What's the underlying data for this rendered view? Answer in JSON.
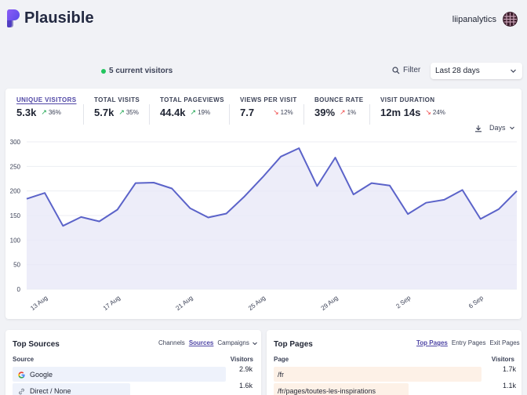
{
  "app": {
    "name": "Plausible",
    "user": "liipanalytics"
  },
  "toolbar": {
    "current_visitors": "5 current visitors",
    "filter_label": "Filter",
    "date_range": "Last 28 days"
  },
  "metrics": [
    {
      "label": "UNIQUE VISITORS",
      "value": "5.3k",
      "change": "36%",
      "direction": "up"
    },
    {
      "label": "TOTAL VISITS",
      "value": "5.7k",
      "change": "35%",
      "direction": "up"
    },
    {
      "label": "TOTAL PAGEVIEWS",
      "value": "44.4k",
      "change": "19%",
      "direction": "up"
    },
    {
      "label": "VIEWS PER VISIT",
      "value": "7.7",
      "change": "12%",
      "direction": "down"
    },
    {
      "label": "BOUNCE RATE",
      "value": "39%",
      "change": "1%",
      "direction": "up"
    },
    {
      "label": "VISIT DURATION",
      "value": "12m 14s",
      "change": "24%",
      "direction": "down"
    }
  ],
  "chart_controls": {
    "interval": "Days"
  },
  "chart_data": {
    "type": "area",
    "x": [
      "12 Aug",
      "13 Aug",
      "14 Aug",
      "15 Aug",
      "16 Aug",
      "17 Aug",
      "18 Aug",
      "19 Aug",
      "20 Aug",
      "21 Aug",
      "22 Aug",
      "23 Aug",
      "24 Aug",
      "25 Aug",
      "26 Aug",
      "27 Aug",
      "28 Aug",
      "29 Aug",
      "30 Aug",
      "31 Aug",
      "1 Sep",
      "2 Sep",
      "3 Sep",
      "4 Sep",
      "5 Sep",
      "6 Sep",
      "7 Sep",
      "8 Sep"
    ],
    "x_tick_labels": [
      "13 Aug",
      "17 Aug",
      "21 Aug",
      "25 Aug",
      "29 Aug",
      "2 Sep",
      "6 Sep"
    ],
    "x_tick_index": [
      1,
      5,
      9,
      13,
      17,
      21,
      25
    ],
    "series": [
      {
        "values": [
          184,
          196,
          129,
          147,
          138,
          162,
          216,
          217,
          205,
          165,
          146,
          154,
          189,
          228,
          270,
          287,
          210,
          268,
          193,
          216,
          211,
          153,
          176,
          182,
          202,
          143,
          163,
          200
        ]
      }
    ],
    "yticks": [
      0,
      50,
      100,
      150,
      200,
      250,
      300
    ],
    "ylim": [
      0,
      300
    ],
    "grid": true,
    "line_color": "#5b63c9",
    "fill_color": "#e8e9f8"
  },
  "sources": {
    "title": "Top Sources",
    "tabs": [
      "Channels",
      "Sources",
      "Campaigns"
    ],
    "active_tab": "Sources",
    "col_source": "Source",
    "col_visitors": "Visitors",
    "rows": [
      {
        "label": "Google",
        "value": "2.9k",
        "share": 1.0,
        "icon": "google-icon"
      },
      {
        "label": "Direct / None",
        "value": "1.6k",
        "share": 0.55,
        "icon": "link-icon"
      }
    ],
    "bar_color": "#eef2fb"
  },
  "pages": {
    "title": "Top Pages",
    "tabs": [
      "Top Pages",
      "Entry Pages",
      "Exit Pages"
    ],
    "active_tab": "Top Pages",
    "col_page": "Page",
    "col_visitors": "Visitors",
    "rows": [
      {
        "label": "/fr",
        "value": "1.7k",
        "share": 1.0
      },
      {
        "label": "/fr/pages/toutes-les-inspirations",
        "value": "1.1k",
        "share": 0.65
      }
    ],
    "bar_color": "#fdf1e7"
  }
}
